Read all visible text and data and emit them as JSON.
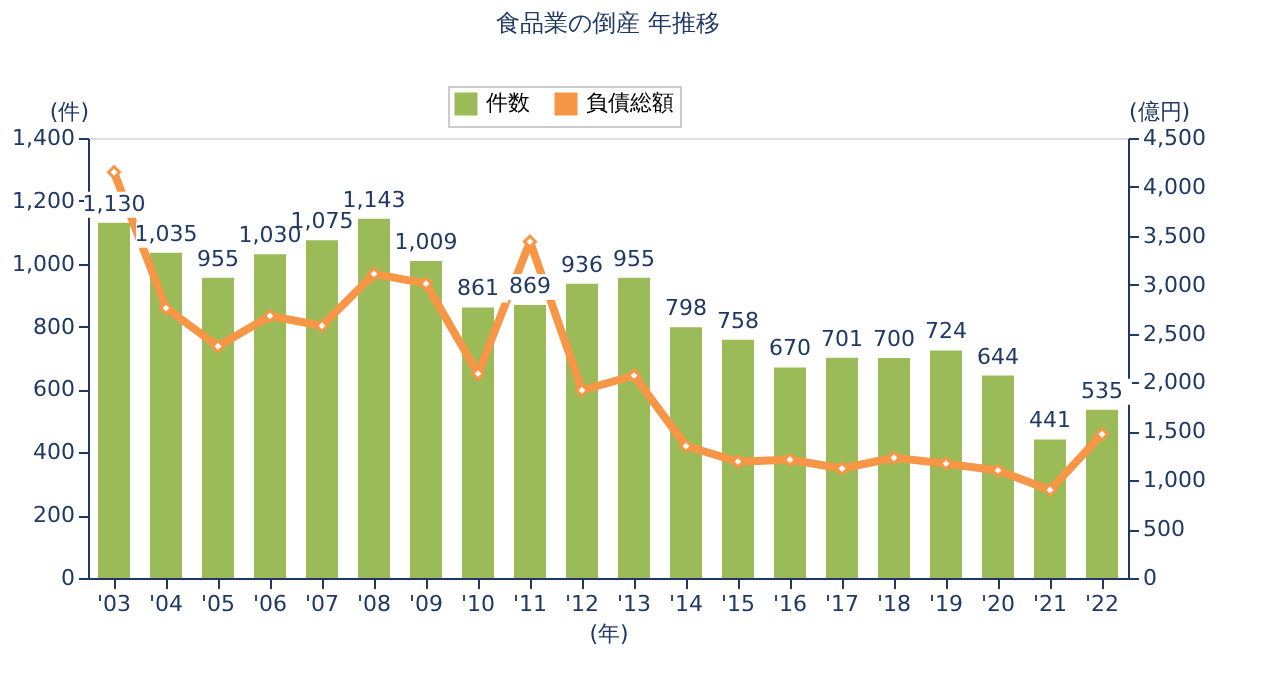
{
  "chart_data": {
    "type": "bar",
    "title": "食品業の倒産 年推移",
    "categories": [
      "'03",
      "'04",
      "'05",
      "'06",
      "'07",
      "'08",
      "'09",
      "'10",
      "'11",
      "'12",
      "'13",
      "'14",
      "'15",
      "'16",
      "'17",
      "'18",
      "'19",
      "'20",
      "'21",
      "'22"
    ],
    "series": [
      {
        "name": "件数",
        "color": "#9bbb59",
        "values": [
          1130,
          1035,
          955,
          1030,
          1075,
          1143,
          1009,
          861,
          869,
          936,
          955,
          798,
          758,
          670,
          701,
          700,
          724,
          644,
          441,
          535
        ],
        "value_labels": [
          "1,130",
          "1,035",
          "955",
          "1,030",
          "1,075",
          "1,143",
          "1,009",
          "861",
          "869",
          "936",
          "955",
          "798",
          "758",
          "670",
          "701",
          "700",
          "724",
          "644",
          "441",
          "535"
        ]
      },
      {
        "name": "負債総額",
        "type": "line",
        "axis": "y2",
        "color": "#f79646",
        "marker": "diamond",
        "values": [
          4150,
          2760,
          2370,
          2680,
          2580,
          3110,
          3010,
          2090,
          3440,
          1920,
          2070,
          1350,
          1190,
          1210,
          1120,
          1230,
          1170,
          1100,
          900,
          1470
        ]
      }
    ],
    "xlabel": "(年)",
    "ylabel": "(件)",
    "y2label": "(億円)",
    "ylim": [
      0,
      1400
    ],
    "yticks": [
      0,
      200,
      400,
      600,
      800,
      {
        "value": 1000,
        "label": "1,000"
      },
      {
        "value": 1200,
        "label": "1,200"
      },
      {
        "value": 1400,
        "label": "1,400"
      }
    ],
    "y2lim": [
      0,
      4500
    ],
    "y2ticks": [
      0,
      500,
      {
        "value": 1000,
        "label": "1,000"
      },
      {
        "value": 1500,
        "label": "1,500"
      },
      {
        "value": 2000,
        "label": "2,000"
      },
      {
        "value": 2500,
        "label": "2,500"
      },
      {
        "value": 3000,
        "label": "3,000"
      },
      {
        "value": 3500,
        "label": "3,500"
      },
      {
        "value": 4000,
        "label": "4,000"
      },
      {
        "value": 4500,
        "label": "4,500"
      }
    ],
    "legend": "top",
    "grid": false
  }
}
